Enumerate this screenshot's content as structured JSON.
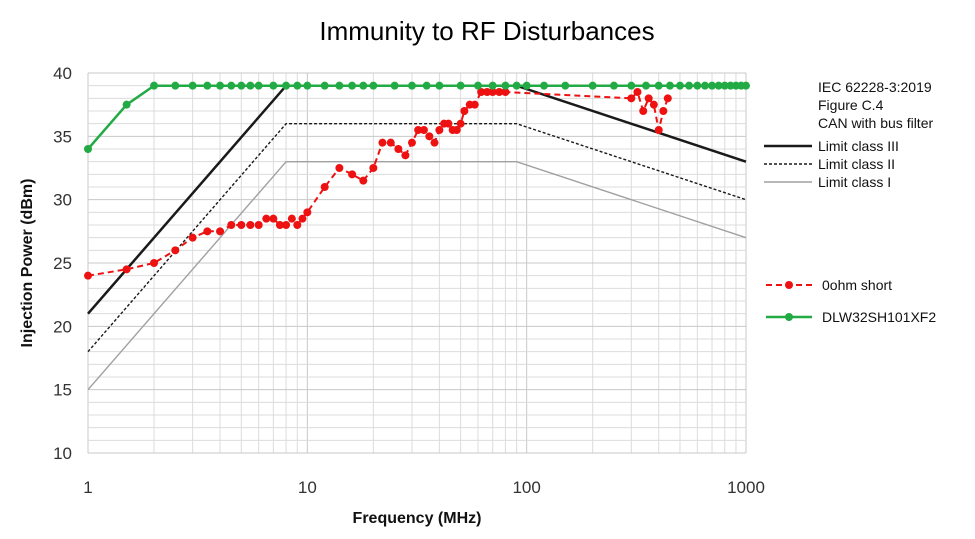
{
  "chart_data": {
    "type": "line",
    "title": "Immunity to RF Disturbances",
    "xlabel": "Frequency (MHz)",
    "ylabel": "Injection Power (dBm)",
    "x_scale": "log",
    "xlim": [
      1,
      1000
    ],
    "ylim": [
      10,
      40
    ],
    "x_ticks": [
      "1",
      "10",
      "100",
      "1000"
    ],
    "y_ticks": [
      "10",
      "15",
      "20",
      "25",
      "30",
      "35",
      "40"
    ],
    "grid": true,
    "legend_position": "right",
    "annotation": [
      "IEC 62228-3:2019",
      "Figure C.4",
      "CAN with bus filter"
    ],
    "limits": [
      {
        "name": "Limit class III",
        "style": "solid-thick",
        "color": "#1a1a1a",
        "x": [
          1,
          8,
          90,
          1000
        ],
        "y": [
          21,
          39,
          39,
          33
        ]
      },
      {
        "name": "Limit class II",
        "style": "dashed",
        "color": "#1a1a1a",
        "x": [
          1,
          8,
          90,
          1000
        ],
        "y": [
          18,
          36,
          36,
          30
        ]
      },
      {
        "name": "Limit class I",
        "style": "solid-thin",
        "color": "#a0a0a0",
        "x": [
          1,
          8,
          90,
          1000
        ],
        "y": [
          15,
          33,
          33,
          27
        ]
      }
    ],
    "series": [
      {
        "name": "0ohm short",
        "color": "#ee1111",
        "style": "dashed-markers",
        "x": [
          1,
          1.5,
          2,
          2.5,
          3,
          3.5,
          4,
          4.5,
          5,
          5.5,
          6,
          6.5,
          7,
          7.5,
          8,
          8.5,
          9,
          9.5,
          10,
          12,
          14,
          16,
          18,
          20,
          22,
          24,
          26,
          28,
          30,
          32,
          34,
          36,
          38,
          40,
          42,
          44,
          46,
          48,
          50,
          52,
          55,
          58,
          62,
          66,
          70,
          75,
          80,
          300,
          320,
          340,
          360,
          380,
          400,
          420,
          440
        ],
        "y": [
          24,
          24.5,
          25,
          26,
          27,
          27.5,
          27.5,
          28,
          28,
          28,
          28,
          28.5,
          28.5,
          28,
          28,
          28.5,
          28,
          28.5,
          29,
          31,
          32.5,
          32,
          31.5,
          32.5,
          34.5,
          34.5,
          34,
          33.5,
          34.5,
          35.5,
          35.5,
          35,
          34.5,
          35.5,
          36,
          36,
          35.5,
          35.5,
          36,
          37,
          37.5,
          37.5,
          38.5,
          38.5,
          38.5,
          38.5,
          38.5,
          38,
          38.5,
          37,
          38,
          37.5,
          35.5,
          37,
          38
        ]
      },
      {
        "name": "DLW32SH101XF2",
        "color": "#22aa44",
        "style": "solid-markers",
        "x": [
          1,
          1.5,
          2,
          2.5,
          3,
          3.5,
          4,
          4.5,
          5,
          5.5,
          6,
          7,
          8,
          9,
          10,
          12,
          14,
          16,
          18,
          20,
          25,
          30,
          35,
          40,
          50,
          60,
          70,
          80,
          90,
          100,
          120,
          150,
          200,
          250,
          300,
          350,
          400,
          450,
          500,
          550,
          600,
          650,
          700,
          750,
          800,
          850,
          900,
          950,
          1000
        ],
        "y": [
          34,
          37.5,
          39,
          39,
          39,
          39,
          39,
          39,
          39,
          39,
          39,
          39,
          39,
          39,
          39,
          39,
          39,
          39,
          39,
          39,
          39,
          39,
          39,
          39,
          39,
          39,
          39,
          39,
          39,
          39,
          39,
          39,
          39,
          39,
          39,
          39,
          39,
          39,
          39,
          39,
          39,
          39,
          39,
          39,
          39,
          39,
          39,
          39,
          39
        ]
      }
    ]
  }
}
